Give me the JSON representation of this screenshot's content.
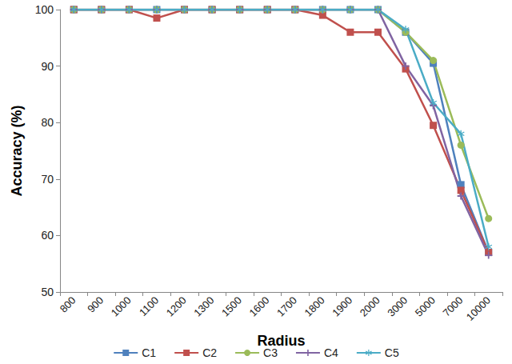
{
  "chart_data": {
    "type": "line",
    "x_label": "Radius",
    "y_label": "Accuracy (%)",
    "categories": [
      "800",
      "900",
      "1000",
      "1100",
      "1200",
      "1300",
      "1500",
      "1600",
      "1700",
      "1800",
      "1900",
      "2000",
      "3000",
      "5000",
      "7000",
      "10000"
    ],
    "series": [
      {
        "name": "C1",
        "color": "#4f81bd",
        "marker": "square",
        "values": [
          100,
          100,
          100,
          100,
          100,
          100,
          100,
          100,
          100,
          100,
          100,
          100,
          96,
          90.5,
          69,
          57
        ]
      },
      {
        "name": "C2",
        "color": "#c0504d",
        "marker": "square",
        "values": [
          100,
          100,
          100,
          98.5,
          100,
          100,
          100,
          100,
          100,
          99,
          96,
          96,
          89.5,
          79.5,
          68,
          57
        ]
      },
      {
        "name": "C3",
        "color": "#9bbb59",
        "marker": "circle",
        "values": [
          100,
          100,
          100,
          100,
          100,
          100,
          100,
          100,
          100,
          100,
          100,
          100,
          96,
          91,
          76,
          63
        ]
      },
      {
        "name": "C4",
        "color": "#8064a2",
        "marker": "plus",
        "values": [
          100,
          100,
          100,
          100,
          100,
          100,
          100,
          100,
          100,
          100,
          100,
          100,
          90,
          83,
          67,
          56.5
        ]
      },
      {
        "name": "C5",
        "color": "#4bacc6",
        "marker": "star",
        "values": [
          100,
          100,
          100,
          100,
          100,
          100,
          100,
          100,
          100,
          100,
          100,
          100,
          96.5,
          83.5,
          78,
          58
        ]
      }
    ],
    "ylim": [
      50,
      100
    ],
    "yticks": [
      50,
      60,
      70,
      80,
      90,
      100
    ],
    "grid": false,
    "legend": "bottom"
  }
}
